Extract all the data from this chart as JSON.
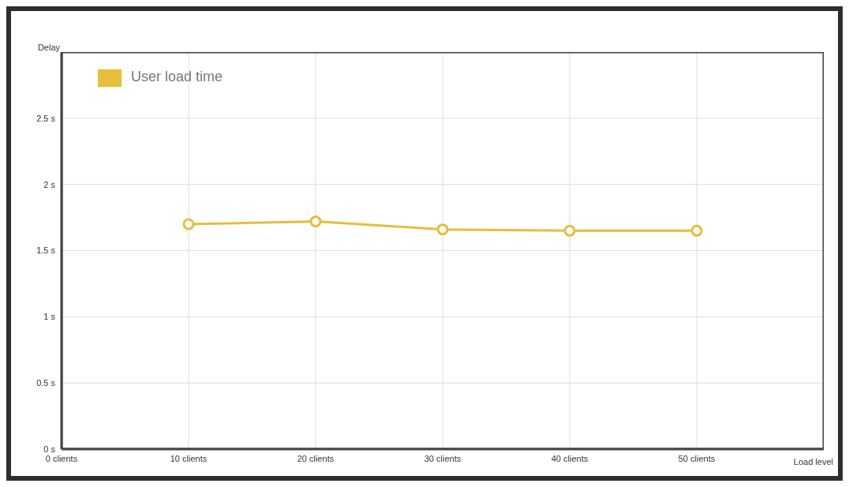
{
  "chart_data": {
    "type": "line",
    "ylabel": "Delay",
    "xlabel": "Load level",
    "x": [
      10,
      20,
      30,
      40,
      50
    ],
    "series": [
      {
        "name": "User load time",
        "color": "#e6bd3c",
        "values": [
          1.7,
          1.72,
          1.66,
          1.65,
          1.65
        ]
      }
    ],
    "xlim": [
      0,
      60
    ],
    "xticks": [
      {
        "value": 0,
        "label": "0 clients"
      },
      {
        "value": 10,
        "label": "10 clients"
      },
      {
        "value": 20,
        "label": "20 clients"
      },
      {
        "value": 30,
        "label": "30 clients"
      },
      {
        "value": 40,
        "label": "40 clients"
      },
      {
        "value": 50,
        "label": "50 clients"
      }
    ],
    "ylim": [
      0,
      3
    ],
    "yticks": [
      {
        "value": 0,
        "label": "0 s"
      },
      {
        "value": 0.5,
        "label": "0.5 s"
      },
      {
        "value": 1,
        "label": "1 s"
      },
      {
        "value": 1.5,
        "label": "1.5 s"
      },
      {
        "value": 2,
        "label": "2 s"
      },
      {
        "value": 2.5,
        "label": "2.5 s"
      }
    ],
    "grid": true,
    "legend": "top left",
    "marker": "circle",
    "line_style": "solid"
  }
}
